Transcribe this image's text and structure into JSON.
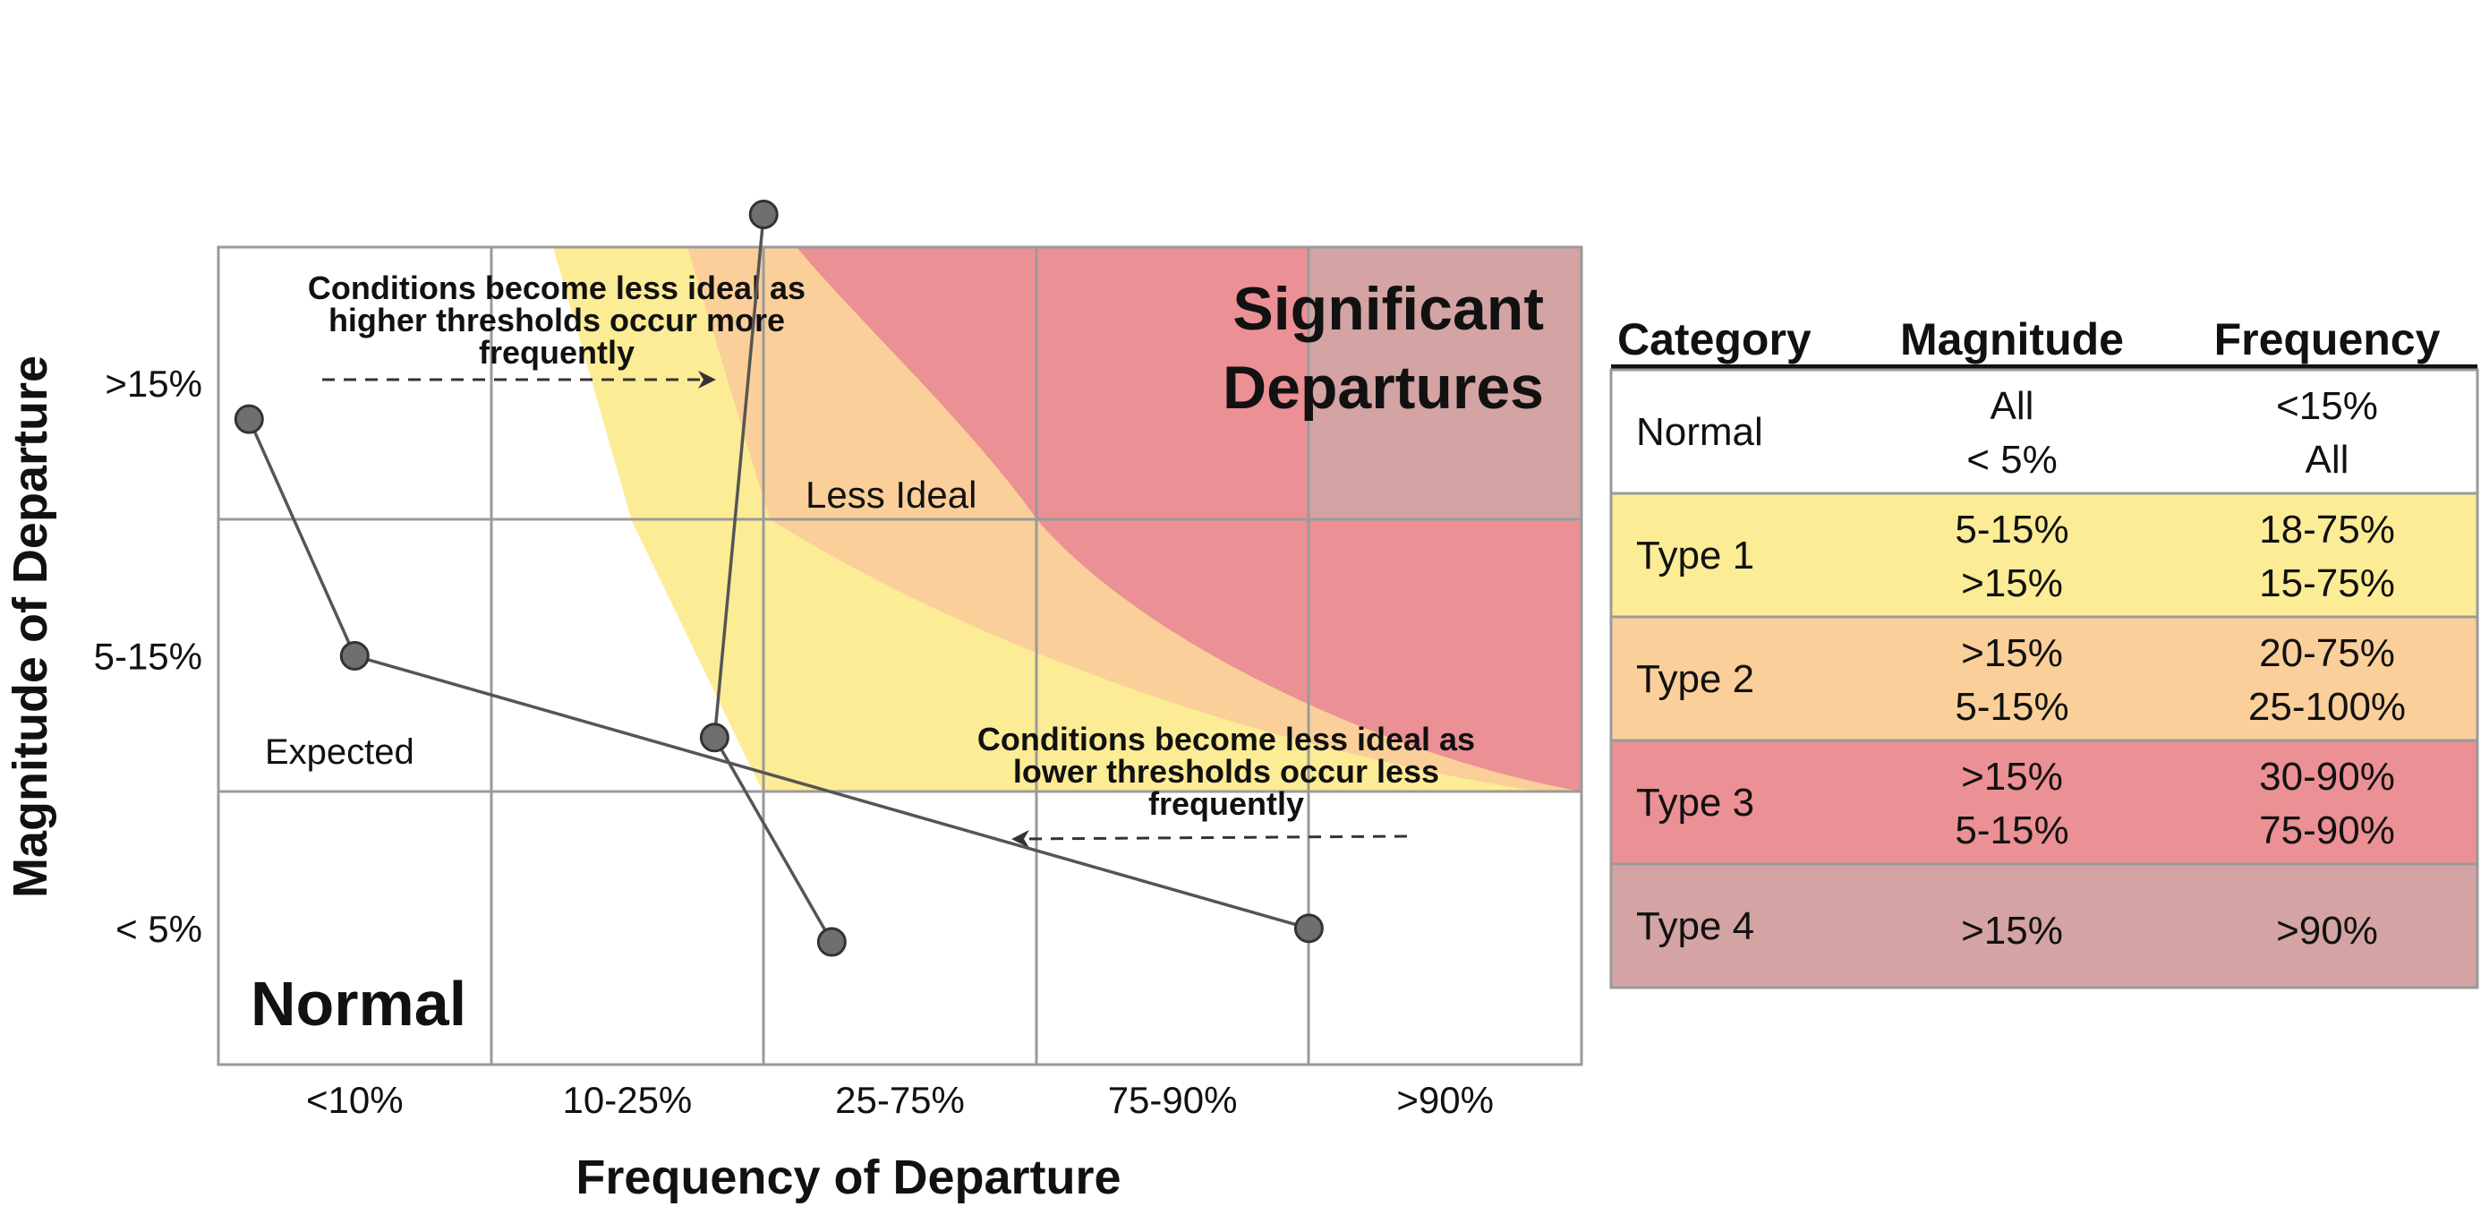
{
  "colors": {
    "type1": "#fcec96",
    "type2": "#fbcf99",
    "type3": "#eb9094",
    "type4": "#d4a3a3",
    "grid": "#9a9a9a",
    "line": "#555555",
    "point": "#6f6f6f",
    "text": "#111111"
  },
  "chart_data": {
    "type": "scatter",
    "xlabel": "Frequency of Departure",
    "ylabel": "Magnitude of Departure",
    "x_categories": [
      "<10%",
      "10-25%",
      "25-75%",
      "75-90%",
      ">90%"
    ],
    "y_categories": [
      "< 5%",
      "5-15%",
      ">15%"
    ],
    "grid": true,
    "series": [
      {
        "points": [
          {
            "x": "<10%",
            "y": ">15%"
          },
          {
            "x": "<10%",
            "y": "5-15%"
          },
          {
            "x": ">90%",
            "y": "< 5%"
          }
        ]
      },
      {
        "points": [
          {
            "x": "25-75%",
            "y": ">15%"
          },
          {
            "x": "10-25%",
            "y": "5-15%"
          },
          {
            "x": "25-75%",
            "y": "< 5%"
          }
        ]
      }
    ]
  },
  "labels": {
    "significant_line1": "Significant",
    "significant_line2": "Departures",
    "normal": "Normal",
    "expected": "Expected",
    "less_ideal": "Less Ideal",
    "note_top": [
      "Conditions become less ideal as",
      "higher thresholds occur more",
      "frequently"
    ],
    "note_bottom": [
      "Conditions become less ideal as",
      "lower thresholds occur less",
      "frequently"
    ]
  },
  "table": {
    "headers": [
      "Category",
      "Magnitude",
      "Frequency"
    ],
    "rows": [
      {
        "category": "Normal",
        "magnitude": [
          "All",
          "< 5%"
        ],
        "frequency": [
          "<15%",
          "All"
        ],
        "color": "#ffffff"
      },
      {
        "category": "Type 1",
        "magnitude": [
          "5-15%",
          ">15%"
        ],
        "frequency": [
          "18-75%",
          "15-75%"
        ],
        "color": "#fcec96"
      },
      {
        "category": "Type 2",
        "magnitude": [
          ">15%",
          "5-15%"
        ],
        "frequency": [
          "20-75%",
          "25-100%"
        ],
        "color": "#fbcf99"
      },
      {
        "category": "Type 3",
        "magnitude": [
          ">15%",
          "5-15%"
        ],
        "frequency": [
          "30-90%",
          "75-90%"
        ],
        "color": "#eb9094"
      },
      {
        "category": "Type 4",
        "magnitude": [
          ">15%"
        ],
        "frequency": [
          ">90%"
        ],
        "color": "#d4a3a3"
      }
    ]
  }
}
